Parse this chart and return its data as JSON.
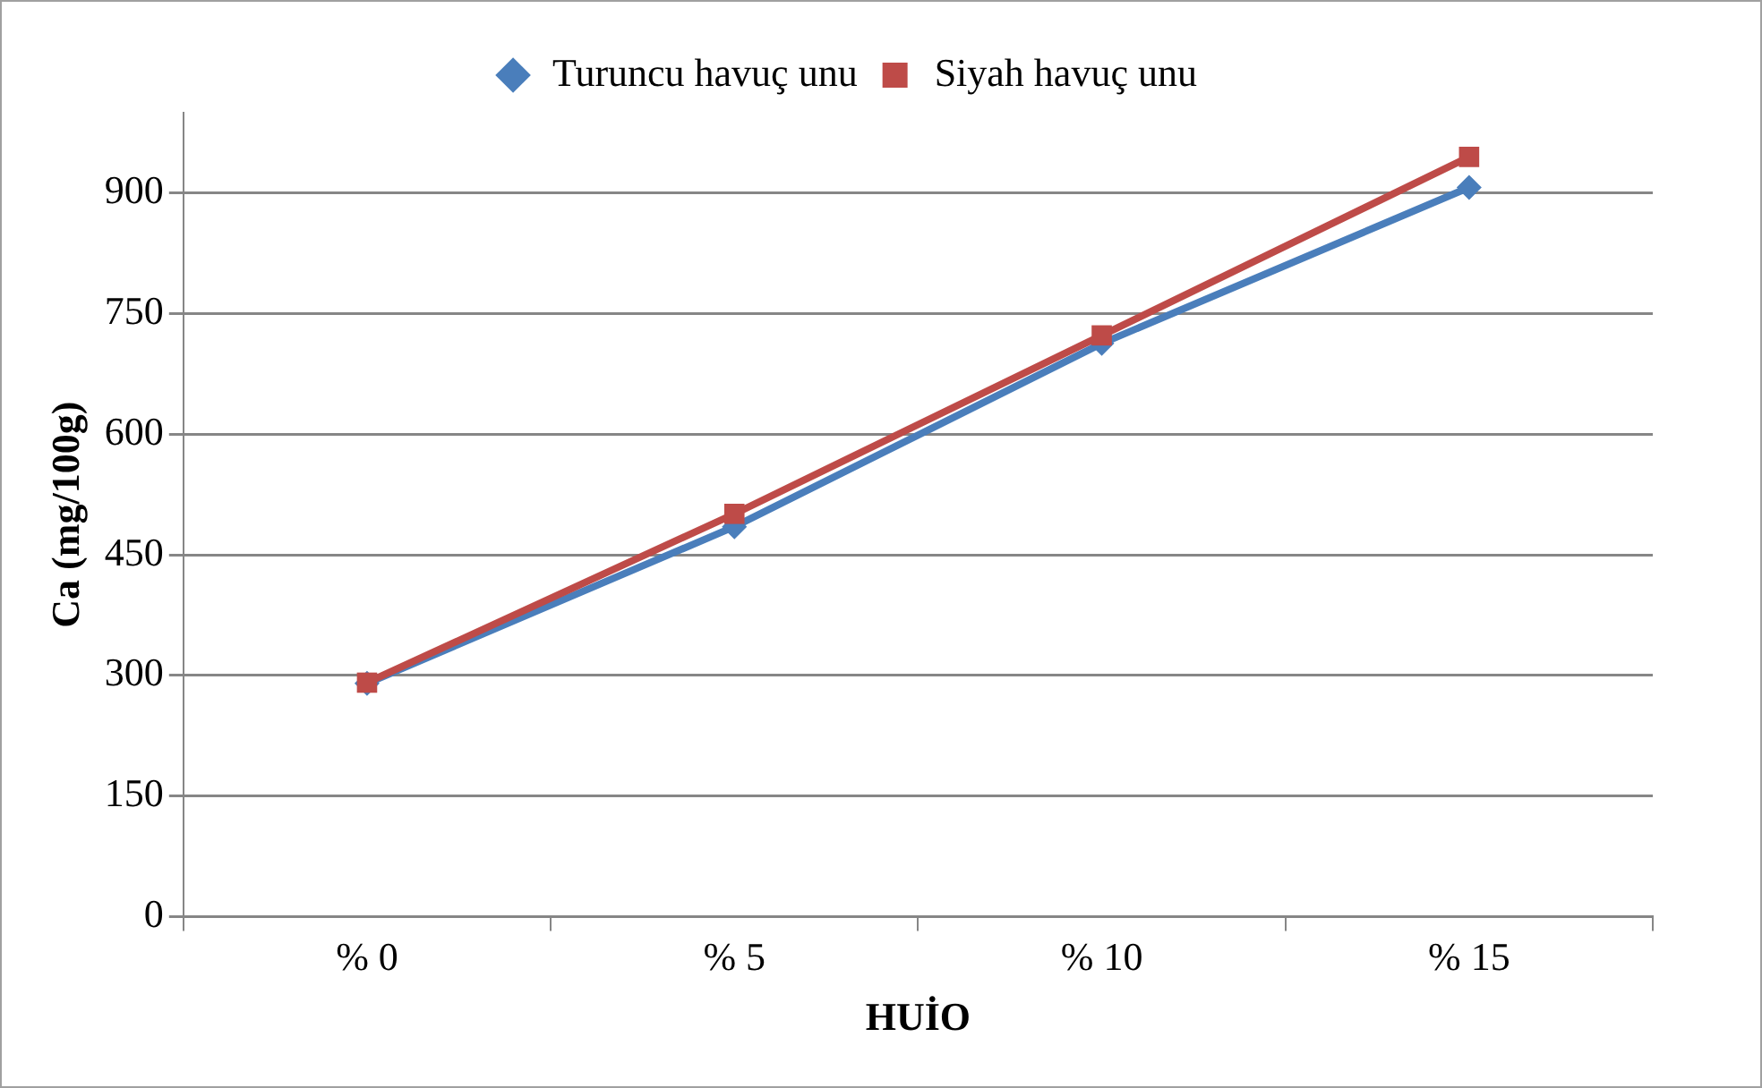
{
  "chart_data": {
    "type": "line",
    "xlabel": "HUİO",
    "ylabel": "Ca (mg/100g)",
    "categories": [
      "% 0",
      "% 5",
      "% 10",
      "% 15"
    ],
    "series": [
      {
        "name": "Turuncu havuç unu",
        "color": "#4a7ebb",
        "marker": "diamond",
        "values": [
          290,
          485,
          713,
          907
        ]
      },
      {
        "name": "Siyah havuç unu",
        "color": "#be4b48",
        "marker": "square",
        "values": [
          291,
          501,
          723,
          945
        ]
      }
    ],
    "ylim": [
      0,
      1000
    ],
    "yticks": [
      0,
      150,
      300,
      450,
      600,
      750,
      900
    ],
    "grid": "y",
    "legend": "top",
    "line_style": "solid"
  }
}
